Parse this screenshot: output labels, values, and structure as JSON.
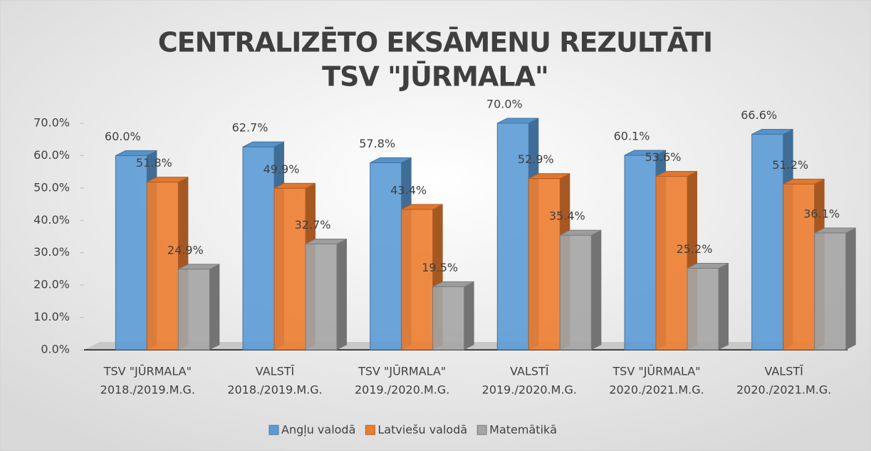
{
  "chart_data": {
    "type": "bar",
    "title": [
      "CENTRALIZĒTO EKSĀMENU REZULTĀTI",
      "TSV \"JŪRMALA\""
    ],
    "categories": [
      [
        "TSV \"JŪRMALA\"",
        "2018./2019.M.G."
      ],
      [
        "VALSTĪ",
        "2018./2019.M.G."
      ],
      [
        "TSV \"JŪRMALA\"",
        "2019./2020.M.G."
      ],
      [
        "VALSTĪ",
        "2019./2020.M.G."
      ],
      [
        "TSV \"JŪRMALA\"",
        "2020./2021.M.G."
      ],
      [
        "VALSTĪ",
        "2020./2021.M.G."
      ]
    ],
    "series": [
      {
        "name": "Angļu valodā",
        "color": "#5b9bd5",
        "values": [
          60.0,
          62.7,
          57.8,
          70.0,
          60.1,
          66.6
        ],
        "value_labels": [
          "60.0%",
          "62.7%",
          "57.8%",
          "70.0%",
          "60.1%",
          "66.6%"
        ]
      },
      {
        "name": "Latviešu valodā",
        "color": "#ed7d31",
        "values": [
          51.8,
          49.9,
          43.4,
          52.9,
          53.6,
          51.2
        ],
        "value_labels": [
          "51.8%",
          "49.9%",
          "43.4%",
          "52.9%",
          "53.6%",
          "51.2%"
        ]
      },
      {
        "name": "Matemātikā",
        "color": "#a5a5a5",
        "values": [
          24.9,
          32.7,
          19.5,
          35.4,
          25.2,
          36.1
        ],
        "value_labels": [
          "24.9%",
          "32.7%",
          "19.5%",
          "35.4%",
          "25.2%",
          "36.1%"
        ]
      }
    ],
    "ylim": [
      0,
      70
    ],
    "yticks": [
      {
        "value": 0,
        "label": "0.0%"
      },
      {
        "value": 10,
        "label": "10.0%"
      },
      {
        "value": 20,
        "label": "20.0%"
      },
      {
        "value": 30,
        "label": "30.0%"
      },
      {
        "value": 40,
        "label": "40.0%"
      },
      {
        "value": 50,
        "label": "50.0%"
      },
      {
        "value": 60,
        "label": "60.0%"
      },
      {
        "value": 70,
        "label": "70.0%"
      }
    ],
    "legend": "bottom"
  }
}
